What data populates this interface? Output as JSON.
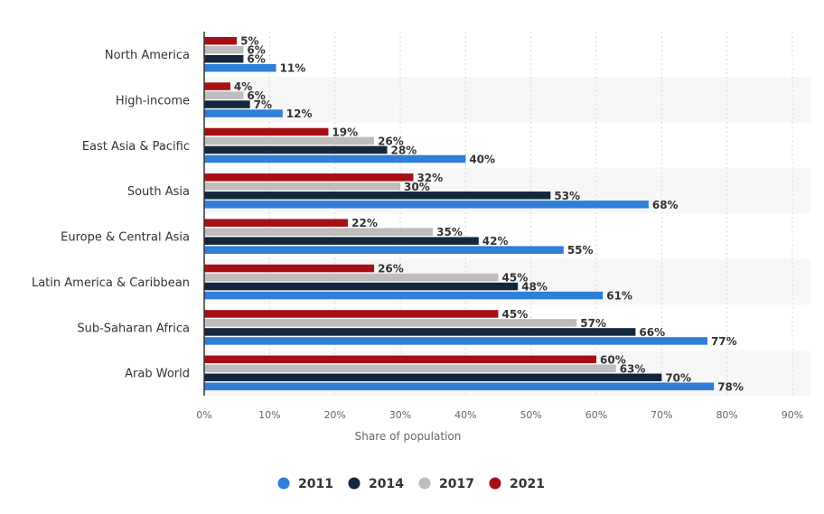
{
  "chart_data": {
    "type": "bar",
    "orientation": "horizontal",
    "categories": [
      "North America",
      "High-income",
      "East Asia & Pacific",
      "South Asia",
      "Europe & Central Asia",
      "Latin America & Caribbean",
      "Sub-Saharan Africa",
      "Arab World"
    ],
    "series": [
      {
        "name": "2021",
        "color": "#a50f15",
        "values": [
          5,
          4,
          19,
          32,
          22,
          26,
          45,
          60
        ]
      },
      {
        "name": "2017",
        "color": "#bdbdbd",
        "values": [
          6,
          6,
          26,
          30,
          35,
          45,
          57,
          63
        ]
      },
      {
        "name": "2014",
        "color": "#14263d",
        "values": [
          6,
          7,
          28,
          53,
          42,
          48,
          66,
          70
        ]
      },
      {
        "name": "2011",
        "color": "#2f7ed8",
        "values": [
          11,
          12,
          40,
          68,
          55,
          61,
          77,
          78
        ]
      }
    ],
    "legend_order": [
      "2011",
      "2014",
      "2017",
      "2021"
    ],
    "value_suffix": "%",
    "xticks": [
      "0%",
      "10%",
      "20%",
      "30%",
      "40%",
      "50%",
      "60%",
      "70%",
      "80%",
      "90%"
    ],
    "xlim": [
      0,
      90
    ],
    "xlabel": "Share of population",
    "ylabel": "",
    "title": "",
    "grid": true,
    "alternating_bands": true,
    "legend_position": "bottom-center"
  }
}
